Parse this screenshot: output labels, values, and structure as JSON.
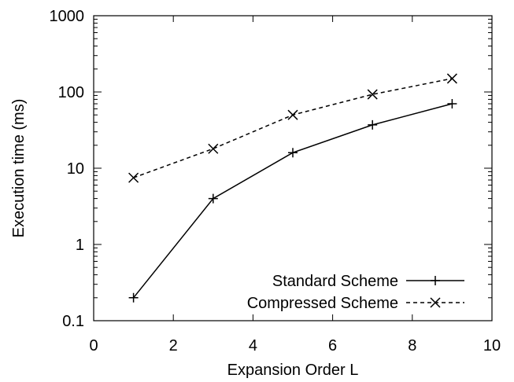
{
  "chart_data": {
    "type": "line",
    "title": "",
    "xlabel": "Expansion Order L",
    "ylabel": "Execution time (ms)",
    "xlim": [
      0,
      10
    ],
    "ylim": [
      0.1,
      1000
    ],
    "yscale": "log",
    "grid": false,
    "legend_position": "bottom-right",
    "x_ticks": [
      "0",
      "2",
      "4",
      "6",
      "8",
      "10"
    ],
    "y_ticks": [
      "0.1",
      "1",
      "10",
      "100",
      "1000"
    ],
    "x": [
      1,
      3,
      5,
      7,
      9
    ],
    "series": [
      {
        "name": "Standard Scheme",
        "values": [
          0.2,
          4,
          16,
          37,
          70
        ],
        "line_style": "solid",
        "marker": "plus",
        "color": "#000000"
      },
      {
        "name": "Compressed Scheme",
        "values": [
          7.5,
          18,
          50,
          93,
          150
        ],
        "line_style": "dashed",
        "marker": "cross",
        "color": "#000000"
      }
    ]
  }
}
